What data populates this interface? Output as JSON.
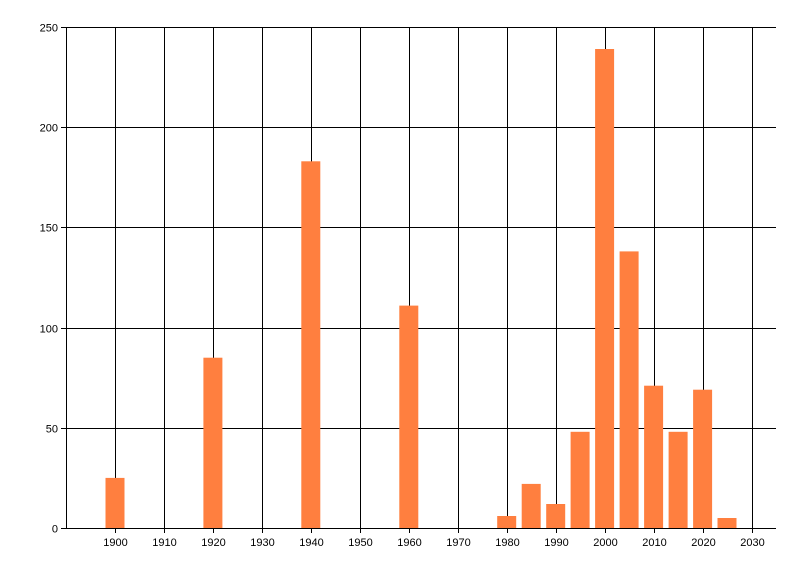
{
  "chart_data": {
    "type": "bar",
    "x": [
      1900,
      1920,
      1940,
      1960,
      1980,
      1985,
      1990,
      1995,
      2000,
      2005,
      2010,
      2015,
      2020,
      2025
    ],
    "values": [
      25,
      85,
      183,
      111,
      6,
      22,
      12,
      48,
      239,
      138,
      71,
      48,
      69,
      5
    ],
    "title": "",
    "xlabel": "",
    "ylabel": "",
    "xlim": [
      1890,
      2035
    ],
    "ylim": [
      0,
      250
    ],
    "x_ticks": [
      1900,
      1910,
      1920,
      1930,
      1940,
      1950,
      1960,
      1970,
      1980,
      1990,
      2000,
      2010,
      2020,
      2030
    ],
    "y_ticks": [
      0,
      50,
      100,
      150,
      200,
      250
    ],
    "grid": true,
    "legend": "none",
    "bar_color": "#FF7F3F",
    "grid_color": "#000000"
  }
}
